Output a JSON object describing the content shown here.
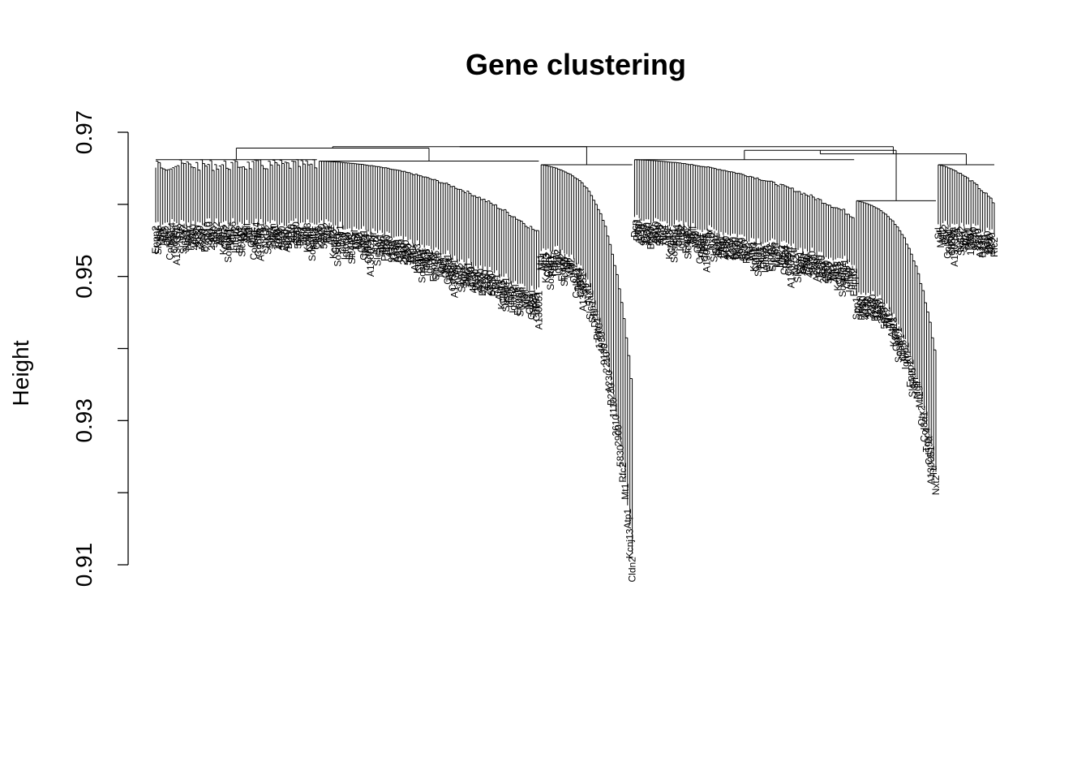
{
  "chart_data": {
    "type": "dendrogram",
    "title": "Gene clustering",
    "ylabel": "Height",
    "xlabel": "",
    "ylim": [
      0.91,
      0.97
    ],
    "y_ticks": [
      {
        "value": 0.91,
        "label": "0.91"
      },
      {
        "value": 0.92,
        "label": ""
      },
      {
        "value": 0.93,
        "label": "0.93"
      },
      {
        "value": 0.94,
        "label": ""
      },
      {
        "value": 0.95,
        "label": "0.95"
      },
      {
        "value": 0.96,
        "label": ""
      },
      {
        "value": 0.97,
        "label": "0.97"
      }
    ],
    "root_height": 0.968,
    "clusters": [
      {
        "id": "A",
        "n_leaves": 70,
        "top": 0.9662,
        "leaf_base_start": 0.9575,
        "leaf_base_end": 0.9575,
        "decay": 0.0
      },
      {
        "id": "B",
        "n_leaves": 95,
        "top": 0.966,
        "leaf_base_start": 0.9575,
        "leaf_base_end": 0.948,
        "decay": 0.4
      },
      {
        "id": "C",
        "n_leaves": 40,
        "top": 0.9655,
        "leaf_base_start": 0.954,
        "leaf_base_end": 0.912,
        "decay": 2.2
      },
      {
        "id": "D",
        "n_leaves": 95,
        "top": 0.9662,
        "leaf_base_start": 0.958,
        "leaf_base_end": 0.952,
        "decay": 0.3
      },
      {
        "id": "E",
        "n_leaves": 35,
        "top": 0.9605,
        "leaf_base_start": 0.948,
        "leaf_base_end": 0.923,
        "decay": 1.6
      },
      {
        "id": "F",
        "n_leaves": 25,
        "top": 0.9655,
        "leaf_base_start": 0.9575,
        "leaf_base_end": 0.956,
        "decay": 0.5
      }
    ],
    "merges": [
      {
        "children": [
          "A",
          "B"
        ],
        "height": 0.9678
      },
      {
        "children": [
          "AB",
          "C"
        ],
        "height": 0.968
      },
      {
        "children": [
          "D",
          "E"
        ],
        "height": 0.9675
      },
      {
        "children": [
          "DE",
          "F"
        ],
        "height": 0.967
      },
      {
        "children": [
          "ABC",
          "DEF"
        ],
        "height": 0.968
      }
    ],
    "leaf_labels_visible": [
      "Srl",
      "Mgll",
      "Mt2",
      "Otx2",
      "Col8a1",
      "Trpc4",
      "Cd59a",
      "A130051",
      "Ttr",
      "Nxt2",
      "Slc5a2",
      "Spp1",
      "Dcn",
      "Pttg1",
      "1700",
      "4930",
      "9130",
      "2210",
      "A230",
      "B230",
      "1110",
      "2610",
      "2900",
      "5830",
      "Rfc2",
      "Mt1",
      "Atp1",
      "Kcnj13",
      "Cldn2",
      "Sostdc1",
      "Folr1",
      "Clic6",
      "Igfbp2",
      "Kl",
      "Enpp2",
      "Slc4a5"
    ]
  }
}
